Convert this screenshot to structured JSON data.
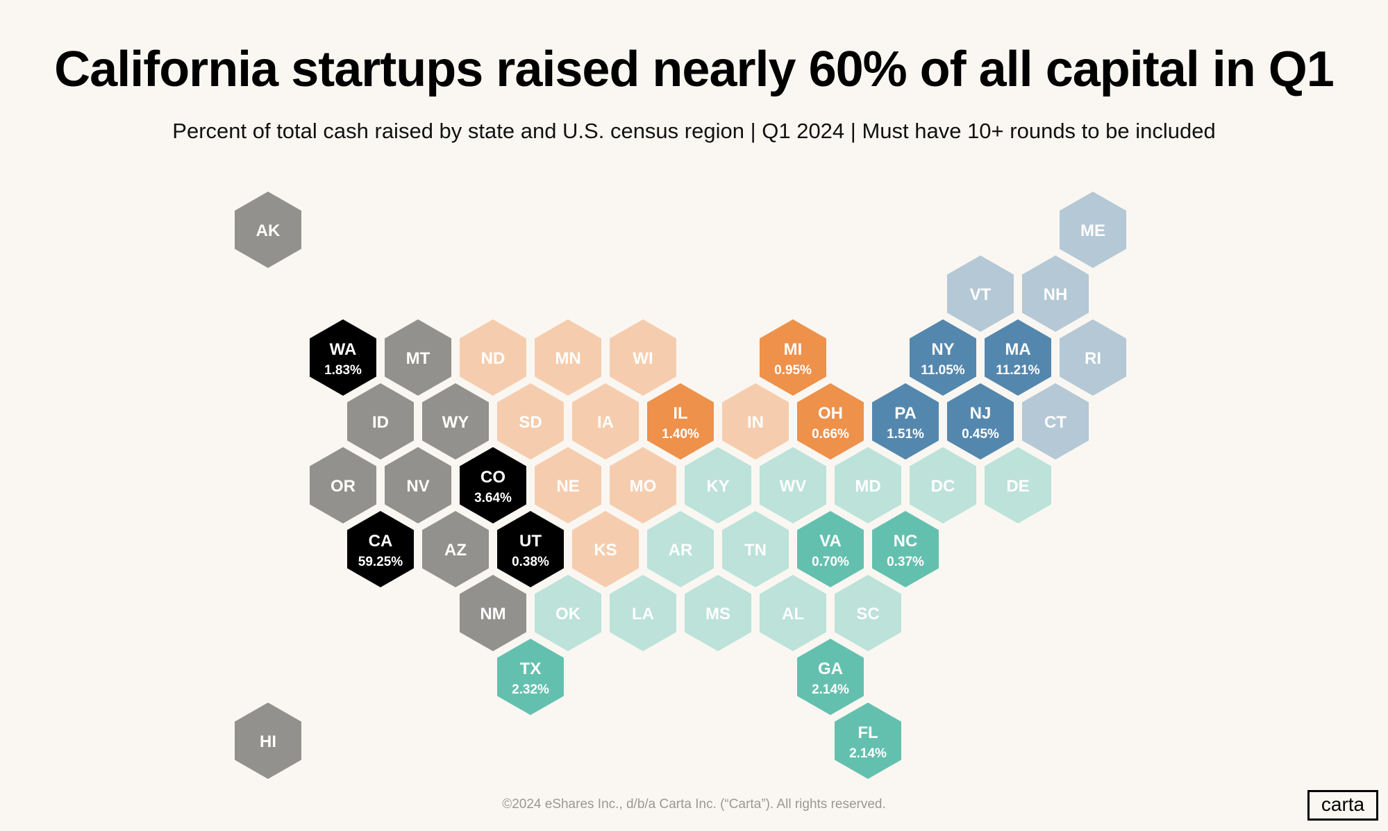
{
  "title": "California startups raised nearly 60% of all capital in Q1",
  "subtitle": "Percent of total cash raised by state and U.S. census region | Q1 2024 | Must have 10+ rounds to be included",
  "footer": "©2024 eShares Inc., d/b/a Carta Inc. (“Carta”). All rights reserved.",
  "logo": "carta",
  "colors": {
    "background": "#faf7f2",
    "west_none": "#93918d",
    "west": "#000000",
    "midwest_none": "#f5cdae",
    "midwest": "#ee914b",
    "northeast_none": "#b4c8d6",
    "northeast": "#5487ae",
    "south_none": "#bce2d9",
    "south": "#64c0ae"
  },
  "states": [
    {
      "abbr": "AK",
      "row": 0,
      "col": 0,
      "color": "#93918d"
    },
    {
      "abbr": "ME",
      "row": 0,
      "col": 22,
      "color": "#b4c8d6"
    },
    {
      "abbr": "VT",
      "row": 1,
      "col": 19,
      "color": "#b4c8d6"
    },
    {
      "abbr": "NH",
      "row": 1,
      "col": 21,
      "color": "#b4c8d6"
    },
    {
      "abbr": "WA",
      "row": 2,
      "col": 2,
      "color": "#000000",
      "pct": "1.83%"
    },
    {
      "abbr": "MT",
      "row": 2,
      "col": 4,
      "color": "#93918d"
    },
    {
      "abbr": "ND",
      "row": 2,
      "col": 6,
      "color": "#f5cdae"
    },
    {
      "abbr": "MN",
      "row": 2,
      "col": 8,
      "color": "#f5cdae"
    },
    {
      "abbr": "WI",
      "row": 2,
      "col": 10,
      "color": "#f5cdae"
    },
    {
      "abbr": "MI",
      "row": 2,
      "col": 14,
      "color": "#ee914b",
      "pct": "0.95%"
    },
    {
      "abbr": "NY",
      "row": 2,
      "col": 18,
      "color": "#5487ae",
      "pct": "11.05%"
    },
    {
      "abbr": "MA",
      "row": 2,
      "col": 20,
      "color": "#5487ae",
      "pct": "11.21%"
    },
    {
      "abbr": "RI",
      "row": 2,
      "col": 22,
      "color": "#b4c8d6"
    },
    {
      "abbr": "ID",
      "row": 3,
      "col": 3,
      "color": "#93918d"
    },
    {
      "abbr": "WY",
      "row": 3,
      "col": 5,
      "color": "#93918d"
    },
    {
      "abbr": "SD",
      "row": 3,
      "col": 7,
      "color": "#f5cdae"
    },
    {
      "abbr": "IA",
      "row": 3,
      "col": 9,
      "color": "#f5cdae"
    },
    {
      "abbr": "IL",
      "row": 3,
      "col": 11,
      "color": "#ee914b",
      "pct": "1.40%"
    },
    {
      "abbr": "IN",
      "row": 3,
      "col": 13,
      "color": "#f5cdae"
    },
    {
      "abbr": "OH",
      "row": 3,
      "col": 15,
      "color": "#ee914b",
      "pct": "0.66%"
    },
    {
      "abbr": "PA",
      "row": 3,
      "col": 17,
      "color": "#5487ae",
      "pct": "1.51%"
    },
    {
      "abbr": "NJ",
      "row": 3,
      "col": 19,
      "color": "#5487ae",
      "pct": "0.45%"
    },
    {
      "abbr": "CT",
      "row": 3,
      "col": 21,
      "color": "#b4c8d6"
    },
    {
      "abbr": "OR",
      "row": 4,
      "col": 2,
      "color": "#93918d"
    },
    {
      "abbr": "NV",
      "row": 4,
      "col": 4,
      "color": "#93918d"
    },
    {
      "abbr": "CO",
      "row": 4,
      "col": 6,
      "color": "#000000",
      "pct": "3.64%"
    },
    {
      "abbr": "NE",
      "row": 4,
      "col": 8,
      "color": "#f5cdae"
    },
    {
      "abbr": "MO",
      "row": 4,
      "col": 10,
      "color": "#f5cdae"
    },
    {
      "abbr": "KY",
      "row": 4,
      "col": 12,
      "color": "#bce2d9"
    },
    {
      "abbr": "WV",
      "row": 4,
      "col": 14,
      "color": "#bce2d9"
    },
    {
      "abbr": "MD",
      "row": 4,
      "col": 16,
      "color": "#bce2d9"
    },
    {
      "abbr": "DC",
      "row": 4,
      "col": 18,
      "color": "#bce2d9"
    },
    {
      "abbr": "DE",
      "row": 4,
      "col": 20,
      "color": "#bce2d9"
    },
    {
      "abbr": "CA",
      "row": 5,
      "col": 3,
      "color": "#000000",
      "pct": "59.25%"
    },
    {
      "abbr": "AZ",
      "row": 5,
      "col": 5,
      "color": "#93918d"
    },
    {
      "abbr": "UT",
      "row": 5,
      "col": 7,
      "color": "#000000",
      "pct": "0.38%"
    },
    {
      "abbr": "KS",
      "row": 5,
      "col": 9,
      "color": "#f5cdae"
    },
    {
      "abbr": "AR",
      "row": 5,
      "col": 11,
      "color": "#bce2d9"
    },
    {
      "abbr": "TN",
      "row": 5,
      "col": 13,
      "color": "#bce2d9"
    },
    {
      "abbr": "VA",
      "row": 5,
      "col": 15,
      "color": "#64c0ae",
      "pct": "0.70%"
    },
    {
      "abbr": "NC",
      "row": 5,
      "col": 17,
      "color": "#64c0ae",
      "pct": "0.37%"
    },
    {
      "abbr": "NM",
      "row": 6,
      "col": 6,
      "color": "#93918d"
    },
    {
      "abbr": "OK",
      "row": 6,
      "col": 8,
      "color": "#bce2d9"
    },
    {
      "abbr": "LA",
      "row": 6,
      "col": 10,
      "color": "#bce2d9"
    },
    {
      "abbr": "MS",
      "row": 6,
      "col": 12,
      "color": "#bce2d9"
    },
    {
      "abbr": "AL",
      "row": 6,
      "col": 14,
      "color": "#bce2d9"
    },
    {
      "abbr": "SC",
      "row": 6,
      "col": 16,
      "color": "#bce2d9"
    },
    {
      "abbr": "TX",
      "row": 7,
      "col": 7,
      "color": "#64c0ae",
      "pct": "2.32%"
    },
    {
      "abbr": "GA",
      "row": 7,
      "col": 15,
      "color": "#64c0ae",
      "pct": "2.14%"
    },
    {
      "abbr": "HI",
      "row": 8,
      "col": 0,
      "color": "#93918d"
    },
    {
      "abbr": "FL",
      "row": 8,
      "col": 16,
      "color": "#64c0ae",
      "pct": "2.14%"
    }
  ]
}
